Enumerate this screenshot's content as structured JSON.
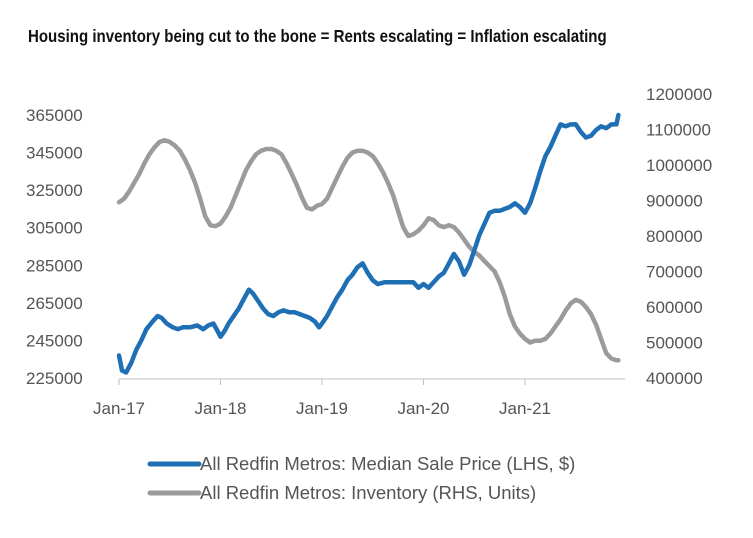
{
  "chart_data": {
    "type": "line",
    "title": "Housing inventory being cut to the bone = Rents escalating = Inflation escalating",
    "x_tick_labels": [
      "Jan-17",
      "Jan-18",
      "Jan-19",
      "Jan-20",
      "Jan-21"
    ],
    "y_left": {
      "ticks": [
        225000,
        245000,
        265000,
        285000,
        305000,
        325000,
        345000,
        365000
      ],
      "range": [
        225000,
        365000
      ]
    },
    "y_right": {
      "ticks": [
        400000,
        500000,
        600000,
        700000,
        800000,
        900000,
        1000000,
        1100000,
        1200000
      ],
      "range": [
        400000,
        1200000
      ]
    },
    "legend_placement": "bottom",
    "grid": false,
    "series": [
      {
        "name": "All Redfin Metros: Median Sale Price (LHS, $)",
        "axis": "left",
        "color": "#1f6fb5",
        "x": [
          2017.0,
          2017.03,
          2017.07,
          2017.12,
          2017.17,
          2017.22,
          2017.27,
          2017.33,
          2017.38,
          2017.42,
          2017.47,
          2017.53,
          2017.58,
          2017.63,
          2017.7,
          2017.77,
          2017.83,
          2017.88,
          2017.93,
          2017.97,
          2018.0,
          2018.04,
          2018.08,
          2018.13,
          2018.18,
          2018.23,
          2018.28,
          2018.32,
          2018.37,
          2018.42,
          2018.47,
          2018.52,
          2018.57,
          2018.62,
          2018.68,
          2018.73,
          2018.78,
          2018.83,
          2018.88,
          2018.93,
          2018.97,
          2019.0,
          2019.05,
          2019.1,
          2019.15,
          2019.2,
          2019.25,
          2019.3,
          2019.35,
          2019.4,
          2019.45,
          2019.5,
          2019.55,
          2019.62,
          2019.7,
          2019.78,
          2019.85,
          2019.9,
          2019.95,
          2020.0,
          2020.05,
          2020.1,
          2020.15,
          2020.2,
          2020.25,
          2020.3,
          2020.35,
          2020.4,
          2020.45,
          2020.5,
          2020.55,
          2020.6,
          2020.65,
          2020.7,
          2020.75,
          2020.8,
          2020.85,
          2020.9,
          2020.95,
          2021.0,
          2021.05,
          2021.1,
          2021.15,
          2021.2,
          2021.25,
          2021.3,
          2021.35,
          2021.4,
          2021.45,
          2021.5,
          2021.55,
          2021.6,
          2021.65,
          2021.7,
          2021.75,
          2021.8,
          2021.85,
          2021.9,
          2021.92
        ],
        "values": [
          237000,
          229000,
          228000,
          233000,
          240000,
          245000,
          251000,
          255000,
          258000,
          257000,
          254000,
          252000,
          251000,
          252000,
          252000,
          253000,
          251000,
          253000,
          254000,
          250000,
          247000,
          250000,
          254000,
          258000,
          262000,
          267000,
          272000,
          270000,
          266000,
          262000,
          259000,
          258000,
          260000,
          261000,
          260000,
          260000,
          259000,
          258000,
          257000,
          255000,
          252000,
          254000,
          258000,
          263000,
          268000,
          272000,
          277000,
          280000,
          284000,
          286000,
          281000,
          277000,
          275000,
          276000,
          276000,
          276000,
          276000,
          276000,
          273000,
          275000,
          273000,
          276000,
          279000,
          281000,
          286000,
          291000,
          287000,
          280000,
          285000,
          293000,
          301000,
          307000,
          313000,
          314000,
          314000,
          315000,
          316000,
          318000,
          316000,
          313000,
          318000,
          326000,
          335000,
          343000,
          348000,
          354000,
          360000,
          359000,
          360000,
          360000,
          356000,
          353000,
          354000,
          357000,
          359000,
          358000,
          360000,
          360000,
          365000
        ]
      },
      {
        "name": "All Redfin Metros: Inventory (RHS, Units)",
        "axis": "right",
        "color": "#9b9b9b",
        "x": [
          2017.0,
          2017.05,
          2017.1,
          2017.15,
          2017.2,
          2017.25,
          2017.3,
          2017.35,
          2017.4,
          2017.45,
          2017.5,
          2017.55,
          2017.6,
          2017.65,
          2017.7,
          2017.75,
          2017.8,
          2017.85,
          2017.9,
          2017.95,
          2018.0,
          2018.05,
          2018.1,
          2018.15,
          2018.2,
          2018.25,
          2018.3,
          2018.35,
          2018.4,
          2018.45,
          2018.5,
          2018.55,
          2018.6,
          2018.65,
          2018.7,
          2018.75,
          2018.8,
          2018.85,
          2018.9,
          2018.95,
          2019.0,
          2019.05,
          2019.1,
          2019.15,
          2019.2,
          2019.25,
          2019.3,
          2019.35,
          2019.4,
          2019.45,
          2019.5,
          2019.55,
          2019.6,
          2019.65,
          2019.7,
          2019.75,
          2019.8,
          2019.85,
          2019.9,
          2019.95,
          2020.0,
          2020.05,
          2020.1,
          2020.15,
          2020.2,
          2020.25,
          2020.3,
          2020.35,
          2020.4,
          2020.45,
          2020.5,
          2020.55,
          2020.6,
          2020.65,
          2020.7,
          2020.75,
          2020.8,
          2020.85,
          2020.9,
          2020.95,
          2021.0,
          2021.05,
          2021.1,
          2021.15,
          2021.2,
          2021.25,
          2021.3,
          2021.35,
          2021.4,
          2021.45,
          2021.5,
          2021.55,
          2021.6,
          2021.65,
          2021.7,
          2021.75,
          2021.8,
          2021.85,
          2021.9,
          2021.92
        ],
        "values": [
          895000,
          905000,
          925000,
          950000,
          975000,
          1005000,
          1030000,
          1050000,
          1065000,
          1070000,
          1065000,
          1055000,
          1040000,
          1015000,
          985000,
          950000,
          905000,
          855000,
          830000,
          828000,
          835000,
          855000,
          880000,
          915000,
          950000,
          985000,
          1010000,
          1030000,
          1040000,
          1045000,
          1045000,
          1040000,
          1030000,
          1005000,
          975000,
          945000,
          910000,
          880000,
          875000,
          885000,
          890000,
          905000,
          935000,
          965000,
          995000,
          1020000,
          1035000,
          1040000,
          1040000,
          1035000,
          1025000,
          1005000,
          980000,
          950000,
          915000,
          870000,
          825000,
          800000,
          805000,
          815000,
          830000,
          850000,
          845000,
          830000,
          825000,
          830000,
          825000,
          810000,
          790000,
          770000,
          755000,
          745000,
          730000,
          715000,
          700000,
          670000,
          630000,
          580000,
          545000,
          525000,
          510000,
          500000,
          505000,
          505000,
          510000,
          525000,
          545000,
          565000,
          590000,
          610000,
          620000,
          615000,
          600000,
          580000,
          550000,
          510000,
          470000,
          455000,
          450000,
          450000
        ]
      }
    ]
  }
}
